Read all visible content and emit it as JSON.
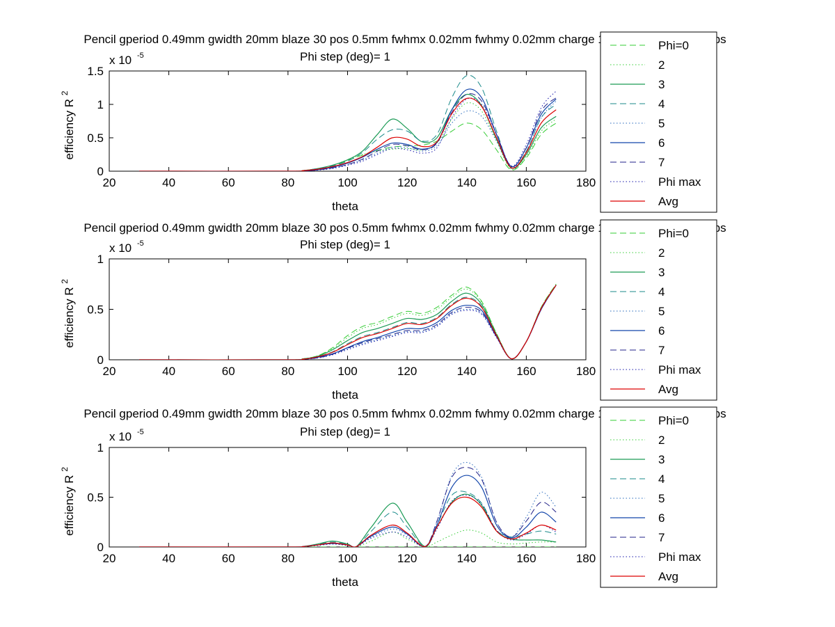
{
  "figure": {
    "background": "#ffffff"
  },
  "series_styles": [
    {
      "key": "phi0",
      "color": "#33cc33",
      "dash": "9,5",
      "width": 1
    },
    {
      "key": "phi2",
      "color": "#33cc33",
      "dash": "1.5,3",
      "width": 1
    },
    {
      "key": "phi3",
      "color": "#1a9a55",
      "dash": "",
      "width": 1.2
    },
    {
      "key": "phi4",
      "color": "#1a8a8a",
      "dash": "9,5",
      "width": 1
    },
    {
      "key": "phi5",
      "color": "#2266bb",
      "dash": "1.5,3",
      "width": 1
    },
    {
      "key": "phi6",
      "color": "#1144aa",
      "dash": "",
      "width": 1.2
    },
    {
      "key": "phi7",
      "color": "#222288",
      "dash": "9,5",
      "width": 1
    },
    {
      "key": "phimax",
      "color": "#1111aa",
      "dash": "1.5,3",
      "width": 1
    },
    {
      "key": "avg",
      "color": "#dd0000",
      "dash": "",
      "width": 1.2
    }
  ],
  "chart_data": [
    {
      "type": "line",
      "title_line1": "Pencil gperiod 0.49mm gwidth 20mm blaze 30 pos 0.5mm fwhmx 0.02mm fwhmy 0.02mm charge 1nC bunchlength 1.67ps",
      "title_line2": "Phi step (deg)= 1",
      "xlabel": "theta",
      "ylabel": "efficiency R",
      "ylabel_sup": "2",
      "exponent_base": "x 10",
      "exponent_power": "-5",
      "xlim": [
        20,
        180
      ],
      "ylim": [
        0,
        1.5
      ],
      "xticks": [
        "20",
        "40",
        "60",
        "80",
        "100",
        "120",
        "140",
        "160",
        "180"
      ],
      "yticks": [
        "0",
        "0.5",
        "1",
        "1.5"
      ],
      "x": [
        30,
        80,
        85,
        90,
        95,
        100,
        105,
        110,
        115,
        120,
        125,
        130,
        135,
        140,
        145,
        150,
        155,
        160,
        165,
        170
      ],
      "series": [
        {
          "name": "Phi=0",
          "values": [
            0,
            0,
            0.01,
            0.03,
            0.08,
            0.16,
            0.24,
            0.31,
            0.36,
            0.38,
            0.39,
            0.45,
            0.6,
            0.72,
            0.62,
            0.32,
            0.02,
            0.2,
            0.55,
            0.72
          ]
        },
        {
          "name": "2",
          "values": [
            0,
            0,
            0.01,
            0.04,
            0.09,
            0.17,
            0.25,
            0.3,
            0.33,
            0.34,
            0.32,
            0.42,
            0.78,
            1.02,
            0.9,
            0.45,
            0.03,
            0.22,
            0.6,
            0.78
          ]
        },
        {
          "name": "3",
          "values": [
            0,
            0,
            0.01,
            0.04,
            0.09,
            0.17,
            0.3,
            0.55,
            0.78,
            0.64,
            0.44,
            0.5,
            0.92,
            1.15,
            0.98,
            0.48,
            0.05,
            0.25,
            0.65,
            0.82
          ]
        },
        {
          "name": "4",
          "values": [
            0,
            0,
            0.01,
            0.04,
            0.08,
            0.15,
            0.28,
            0.48,
            0.62,
            0.6,
            0.45,
            0.55,
            1.1,
            1.43,
            1.25,
            0.6,
            0.04,
            0.3,
            0.8,
            1.0
          ]
        },
        {
          "name": "5",
          "values": [
            0,
            0,
            0.005,
            0.02,
            0.05,
            0.1,
            0.17,
            0.27,
            0.36,
            0.35,
            0.3,
            0.38,
            0.72,
            0.9,
            0.82,
            0.45,
            0.06,
            0.3,
            0.8,
            1.05
          ]
        },
        {
          "name": "6",
          "values": [
            0,
            0,
            0.005,
            0.02,
            0.06,
            0.12,
            0.21,
            0.33,
            0.42,
            0.4,
            0.33,
            0.43,
            0.92,
            1.22,
            1.1,
            0.55,
            0.07,
            0.35,
            0.85,
            1.08
          ]
        },
        {
          "name": "7",
          "values": [
            0,
            0,
            0.005,
            0.02,
            0.05,
            0.1,
            0.18,
            0.3,
            0.4,
            0.38,
            0.32,
            0.42,
            0.88,
            1.15,
            1.05,
            0.55,
            0.07,
            0.35,
            0.9,
            1.1
          ]
        },
        {
          "name": "Phi max",
          "values": [
            0,
            0,
            0.005,
            0.015,
            0.04,
            0.09,
            0.15,
            0.25,
            0.34,
            0.32,
            0.27,
            0.35,
            0.8,
            1.08,
            1.0,
            0.55,
            0.08,
            0.4,
            0.95,
            1.2
          ]
        },
        {
          "name": "Avg",
          "values": [
            0,
            0,
            0.008,
            0.03,
            0.07,
            0.13,
            0.22,
            0.36,
            0.5,
            0.48,
            0.37,
            0.44,
            0.86,
            1.09,
            0.97,
            0.5,
            0.05,
            0.28,
            0.72,
            0.92
          ]
        }
      ]
    },
    {
      "type": "line",
      "title_line1": "Pencil gperiod 0.49mm gwidth 20mm blaze 30 pos 0.5mm fwhmx 0.02mm fwhmy 0.02mm charge 1nC bunchlength 1.67ps",
      "title_line2": "Phi step (deg)= 1",
      "xlabel": "theta",
      "ylabel": "efficiency R",
      "ylabel_sup": "2",
      "exponent_base": "x 10",
      "exponent_power": "-5",
      "xlim": [
        20,
        180
      ],
      "ylim": [
        0,
        1
      ],
      "xticks": [
        "20",
        "40",
        "60",
        "80",
        "100",
        "120",
        "140",
        "160",
        "180"
      ],
      "yticks": [
        "0",
        "0.5",
        "1"
      ],
      "x": [
        30,
        80,
        85,
        90,
        95,
        100,
        105,
        110,
        115,
        120,
        125,
        130,
        135,
        140,
        145,
        150,
        155,
        160,
        165,
        170
      ],
      "series": [
        {
          "name": "Phi=0",
          "values": [
            0,
            0,
            0.01,
            0.04,
            0.12,
            0.24,
            0.33,
            0.37,
            0.43,
            0.48,
            0.46,
            0.52,
            0.64,
            0.72,
            0.58,
            0.26,
            0.01,
            0.18,
            0.52,
            0.75
          ]
        },
        {
          "name": "2",
          "values": [
            0,
            0,
            0.01,
            0.04,
            0.11,
            0.22,
            0.31,
            0.35,
            0.41,
            0.46,
            0.44,
            0.5,
            0.62,
            0.7,
            0.57,
            0.26,
            0.01,
            0.18,
            0.52,
            0.75
          ]
        },
        {
          "name": "3",
          "values": [
            0,
            0,
            0.008,
            0.035,
            0.1,
            0.19,
            0.27,
            0.31,
            0.36,
            0.41,
            0.4,
            0.45,
            0.58,
            0.66,
            0.55,
            0.25,
            0.01,
            0.18,
            0.51,
            0.74
          ]
        },
        {
          "name": "4",
          "values": [
            0,
            0,
            0.007,
            0.03,
            0.08,
            0.16,
            0.23,
            0.27,
            0.32,
            0.37,
            0.36,
            0.42,
            0.55,
            0.62,
            0.53,
            0.24,
            0.01,
            0.18,
            0.51,
            0.74
          ]
        },
        {
          "name": "5",
          "values": [
            0,
            0,
            0.005,
            0.02,
            0.05,
            0.11,
            0.16,
            0.2,
            0.24,
            0.28,
            0.28,
            0.34,
            0.46,
            0.5,
            0.46,
            0.23,
            0.01,
            0.18,
            0.5,
            0.74
          ]
        },
        {
          "name": "6",
          "values": [
            0,
            0,
            0.005,
            0.025,
            0.06,
            0.12,
            0.18,
            0.22,
            0.27,
            0.31,
            0.31,
            0.37,
            0.49,
            0.54,
            0.49,
            0.23,
            0.01,
            0.18,
            0.5,
            0.74
          ]
        },
        {
          "name": "7",
          "values": [
            0,
            0,
            0.005,
            0.02,
            0.055,
            0.115,
            0.17,
            0.21,
            0.25,
            0.29,
            0.29,
            0.35,
            0.47,
            0.52,
            0.47,
            0.23,
            0.01,
            0.18,
            0.5,
            0.74
          ]
        },
        {
          "name": "Phi max",
          "values": [
            0,
            0,
            0.004,
            0.018,
            0.05,
            0.1,
            0.15,
            0.19,
            0.23,
            0.27,
            0.27,
            0.33,
            0.45,
            0.49,
            0.45,
            0.22,
            0.01,
            0.18,
            0.5,
            0.74
          ]
        },
        {
          "name": "Avg",
          "values": [
            0,
            0,
            0.006,
            0.03,
            0.075,
            0.15,
            0.22,
            0.26,
            0.31,
            0.36,
            0.35,
            0.41,
            0.54,
            0.61,
            0.52,
            0.24,
            0.01,
            0.18,
            0.51,
            0.74
          ]
        }
      ]
    },
    {
      "type": "line",
      "title_line1": "Pencil gperiod 0.49mm gwidth 20mm blaze 30 pos 0.5mm fwhmx 0.02mm fwhmy 0.02mm charge 1nC bunchlength 1.67ps",
      "title_line2": "Phi step (deg)= 1",
      "xlabel": "theta",
      "ylabel": "efficiency R",
      "ylabel_sup": "2",
      "exponent_base": "x 10",
      "exponent_power": "-5",
      "xlim": [
        20,
        180
      ],
      "ylim": [
        0,
        1
      ],
      "xticks": [
        "20",
        "40",
        "60",
        "80",
        "100",
        "120",
        "140",
        "160",
        "180"
      ],
      "yticks": [
        "0",
        "0.5",
        "1"
      ],
      "x": [
        30,
        80,
        85,
        90,
        95,
        100,
        103,
        108,
        115,
        120,
        126,
        130,
        135,
        140,
        145,
        150,
        155,
        160,
        165,
        170
      ],
      "series": [
        {
          "name": "Phi=0",
          "values": [
            0,
            0,
            0,
            0,
            0,
            0,
            0,
            0,
            0,
            0,
            0,
            0,
            0,
            0,
            0,
            0,
            0,
            0,
            0,
            0
          ]
        },
        {
          "name": "2",
          "values": [
            0,
            0,
            0.003,
            0.02,
            0.03,
            0.015,
            0.003,
            0.06,
            0.15,
            0.08,
            0.002,
            0.05,
            0.12,
            0.17,
            0.14,
            0.05,
            0.03,
            0.04,
            0.05,
            0.05
          ]
        },
        {
          "name": "3",
          "values": [
            0,
            0,
            0.005,
            0.03,
            0.06,
            0.03,
            0.005,
            0.2,
            0.44,
            0.25,
            0.005,
            0.2,
            0.45,
            0.53,
            0.42,
            0.16,
            0.08,
            0.07,
            0.07,
            0.05
          ]
        },
        {
          "name": "4",
          "values": [
            0,
            0,
            0.005,
            0.025,
            0.05,
            0.025,
            0.005,
            0.16,
            0.35,
            0.2,
            0.005,
            0.22,
            0.52,
            0.55,
            0.44,
            0.17,
            0.1,
            0.13,
            0.16,
            0.13
          ]
        },
        {
          "name": "5",
          "values": [
            0,
            0,
            0.004,
            0.02,
            0.04,
            0.02,
            0.004,
            0.1,
            0.18,
            0.12,
            0.004,
            0.25,
            0.72,
            0.85,
            0.7,
            0.25,
            0.1,
            0.3,
            0.55,
            0.4
          ]
        },
        {
          "name": "6",
          "values": [
            0,
            0,
            0.004,
            0.02,
            0.035,
            0.02,
            0.004,
            0.11,
            0.2,
            0.13,
            0.004,
            0.22,
            0.6,
            0.72,
            0.6,
            0.22,
            0.09,
            0.2,
            0.35,
            0.25
          ]
        },
        {
          "name": "7",
          "values": [
            0,
            0,
            0.004,
            0.02,
            0.04,
            0.02,
            0.004,
            0.12,
            0.22,
            0.14,
            0.004,
            0.26,
            0.7,
            0.8,
            0.68,
            0.25,
            0.1,
            0.26,
            0.45,
            0.35
          ]
        },
        {
          "name": "Phi max",
          "values": [
            0,
            0,
            0.003,
            0.015,
            0.03,
            0.015,
            0.003,
            0.09,
            0.15,
            0.1,
            0.003,
            0.18,
            0.46,
            0.52,
            0.43,
            0.17,
            0.07,
            0.13,
            0.22,
            0.15
          ]
        },
        {
          "name": "Avg",
          "values": [
            0,
            0,
            0.004,
            0.02,
            0.04,
            0.02,
            0.004,
            0.12,
            0.22,
            0.14,
            0.004,
            0.2,
            0.44,
            0.5,
            0.4,
            0.16,
            0.08,
            0.14,
            0.22,
            0.17
          ]
        }
      ]
    }
  ]
}
